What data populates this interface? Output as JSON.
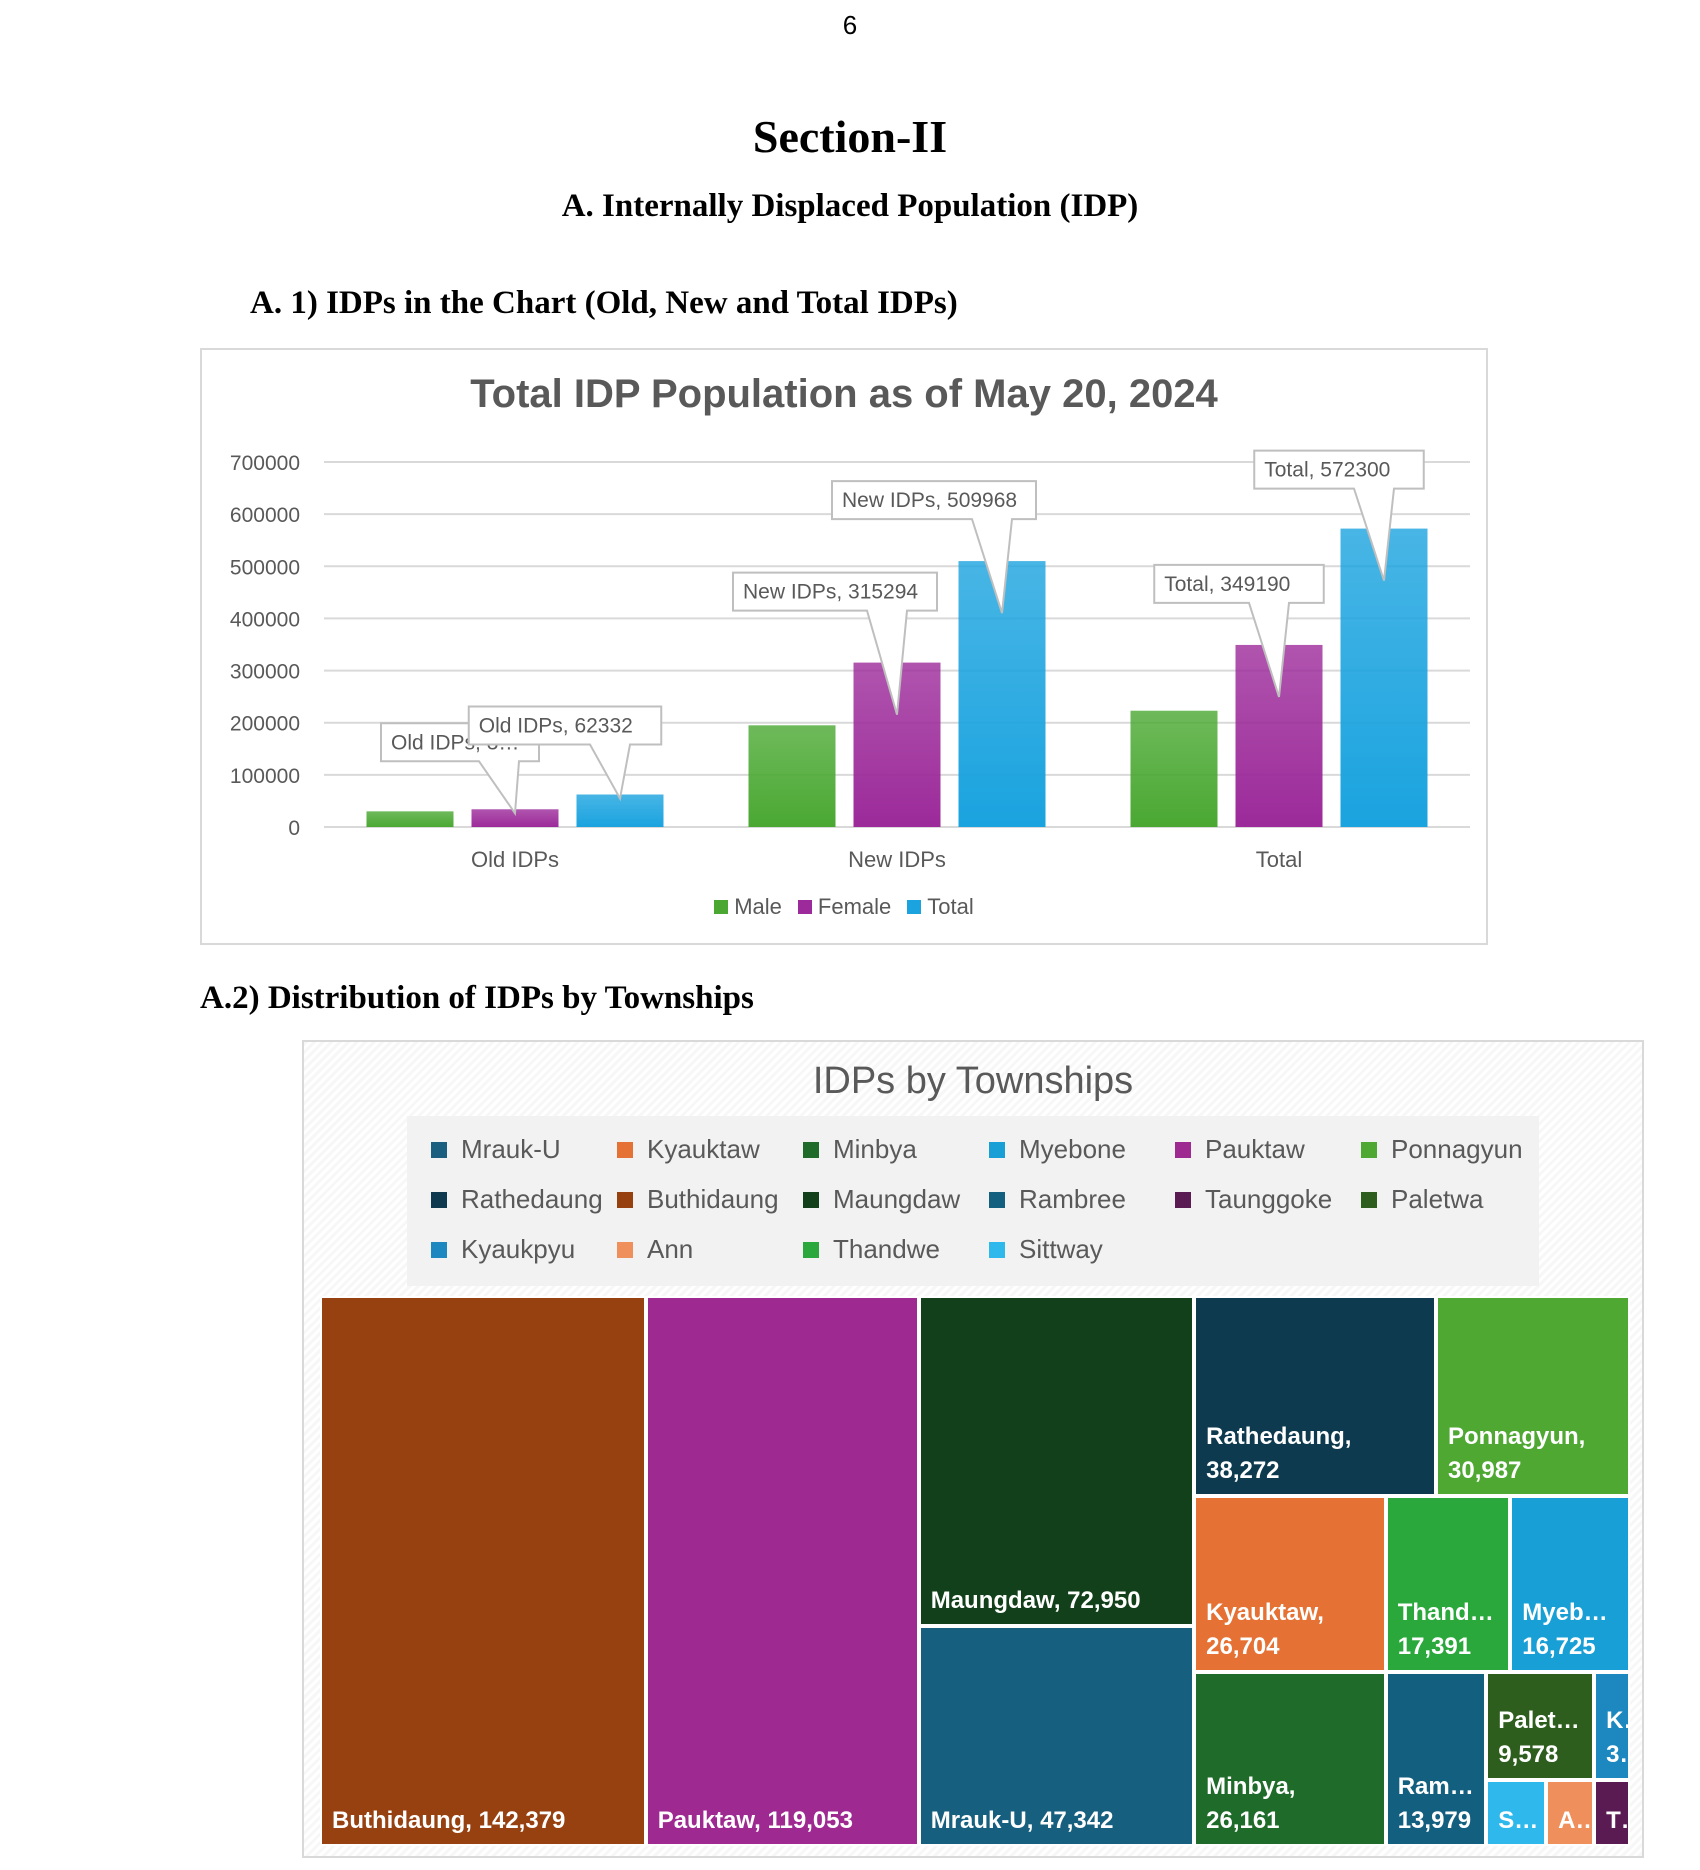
{
  "page_number": "6",
  "section_title": "Section-II",
  "subsection_title": "A.  Internally Displaced Population (IDP)",
  "chart1_heading": "A.  1) IDPs in the Chart (Old, New and Total IDPs)",
  "chart2_heading": "A.2) Distribution of IDPs by Townships",
  "chart_data": [
    {
      "type": "bar",
      "title": "Total IDP Population as of May 20, 2024",
      "categories": [
        "Old IDPs",
        "New IDPs",
        "Total"
      ],
      "series": [
        {
          "name": "Male",
          "color": "#4aa832",
          "values": [
            30000,
            195000,
            223000
          ]
        },
        {
          "name": "Female",
          "color": "#9c2a9a",
          "values": [
            34000,
            315294,
            349190
          ]
        },
        {
          "name": "Total",
          "color": "#1aa3df",
          "values": [
            62332,
            509968,
            572300
          ]
        }
      ],
      "y_ticks": [
        "0",
        "100000",
        "200000",
        "300000",
        "400000",
        "500000",
        "600000",
        "700000"
      ],
      "ylim": [
        0,
        700000
      ],
      "grid": true,
      "legend_position": "bottom",
      "callouts": [
        {
          "text": "Old IDPs, 3…",
          "category": 0,
          "series": 1
        },
        {
          "text": "Old IDPs, 62332",
          "category": 0,
          "series": 2
        },
        {
          "text": "New IDPs, 315294",
          "category": 1,
          "series": 1
        },
        {
          "text": "New IDPs, 509968",
          "category": 1,
          "series": 2
        },
        {
          "text": "Total, 349190",
          "category": 2,
          "series": 1
        },
        {
          "text": "Total, 572300",
          "category": 2,
          "series": 2
        }
      ]
    },
    {
      "type": "treemap",
      "title": "IDPs by Townships",
      "legend": [
        {
          "name": "Mrauk-U",
          "color": "#1a5f80"
        },
        {
          "name": "Kyauktaw",
          "color": "#e57234"
        },
        {
          "name": "Minbya",
          "color": "#1e6b2a"
        },
        {
          "name": "Myebone",
          "color": "#189fd6"
        },
        {
          "name": "Pauktaw",
          "color": "#9e2a91"
        },
        {
          "name": "Ponnagyun",
          "color": "#4ea832"
        },
        {
          "name": "Rathedaung",
          "color": "#0d3a4f"
        },
        {
          "name": "Buthidaung",
          "color": "#974010"
        },
        {
          "name": "Maungdaw",
          "color": "#12401a"
        },
        {
          "name": "Rambree",
          "color": "#135f80"
        },
        {
          "name": "Taunggoke",
          "color": "#5a1a52"
        },
        {
          "name": "Paletwa",
          "color": "#2e5e1e"
        },
        {
          "name": "Kyaukpyu",
          "color": "#1d88c0"
        },
        {
          "name": "Ann",
          "color": "#ee8f5c"
        },
        {
          "name": "Thandwe",
          "color": "#2aa83c"
        },
        {
          "name": "Sittway",
          "color": "#2fb8ec"
        }
      ],
      "tiles": [
        {
          "name": "Buthidaung",
          "value": 142379,
          "label": "Buthidaung, 142,379",
          "color": "#974010"
        },
        {
          "name": "Pauktaw",
          "value": 119053,
          "label": "Pauktaw, 119,053",
          "color": "#9e2a91"
        },
        {
          "name": "Maungdaw",
          "value": 72950,
          "label": "Maungdaw, 72,950",
          "color": "#12401a"
        },
        {
          "name": "Mrauk-U",
          "value": 47342,
          "label": "Mrauk-U, 47,342",
          "color": "#175f7f"
        },
        {
          "name": "Rathedaung",
          "value": 38272,
          "label": "Rathedaung,\n38,272",
          "color": "#0d3a4f"
        },
        {
          "name": "Ponnagyun",
          "value": 30987,
          "label": "Ponnagyun,\n30,987",
          "color": "#4ea832"
        },
        {
          "name": "Kyauktaw",
          "value": 26704,
          "label": "Kyauktaw,\n26,704",
          "color": "#e57234"
        },
        {
          "name": "Thandwe",
          "value": 17391,
          "label": "Thand…\n17,391",
          "color": "#2aa83c"
        },
        {
          "name": "Myebone",
          "value": 16725,
          "label": "Myeb…\n16,725",
          "color": "#189fd6"
        },
        {
          "name": "Minbya",
          "value": 26161,
          "label": "Minbya,\n26,161",
          "color": "#1e6b2a"
        },
        {
          "name": "Rambree",
          "value": 13979,
          "label": "Ram…\n13,979",
          "color": "#135f80"
        },
        {
          "name": "Paletwa",
          "value": 9578,
          "label": "Palet…\n9,578",
          "color": "#2e5e1e"
        },
        {
          "name": "Kyaukpyu",
          "label": "K…\n3…",
          "color": "#1d88c0"
        },
        {
          "name": "Sittway",
          "label": "S…",
          "color": "#2fb8ec"
        },
        {
          "name": "Ann",
          "label": "A…",
          "color": "#ee8f5c"
        },
        {
          "name": "Taunggoke",
          "label": "T…",
          "color": "#5a1a52"
        }
      ]
    }
  ]
}
